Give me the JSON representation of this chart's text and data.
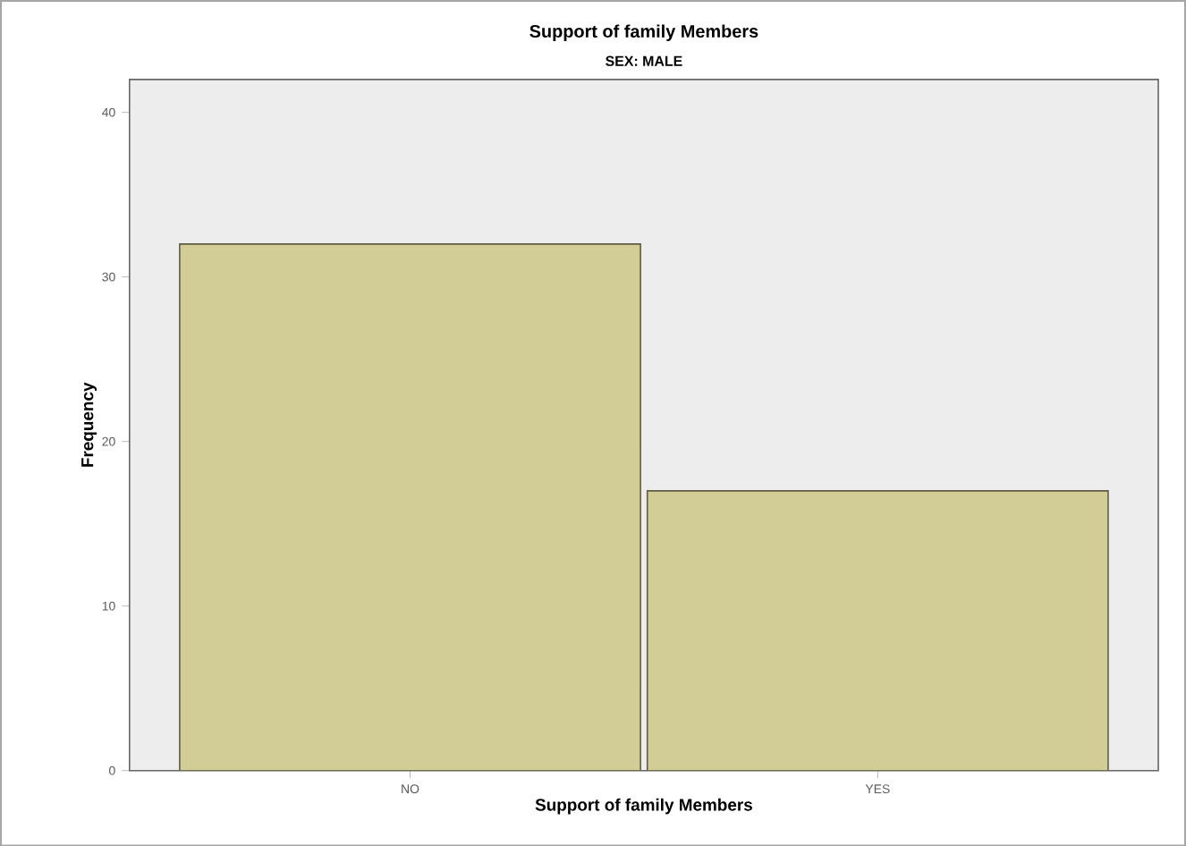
{
  "chart_data": {
    "type": "bar",
    "title": "Support of family Members",
    "subtitle": "SEX: MALE",
    "xlabel": "Support of family Members",
    "ylabel": "Frequency",
    "categories": [
      "NO",
      "YES"
    ],
    "values": [
      32,
      17
    ],
    "color": "#d2cc96",
    "ylim": [
      0,
      42
    ],
    "yticks": [
      0,
      10,
      20,
      30,
      40
    ],
    "grid": false
  }
}
